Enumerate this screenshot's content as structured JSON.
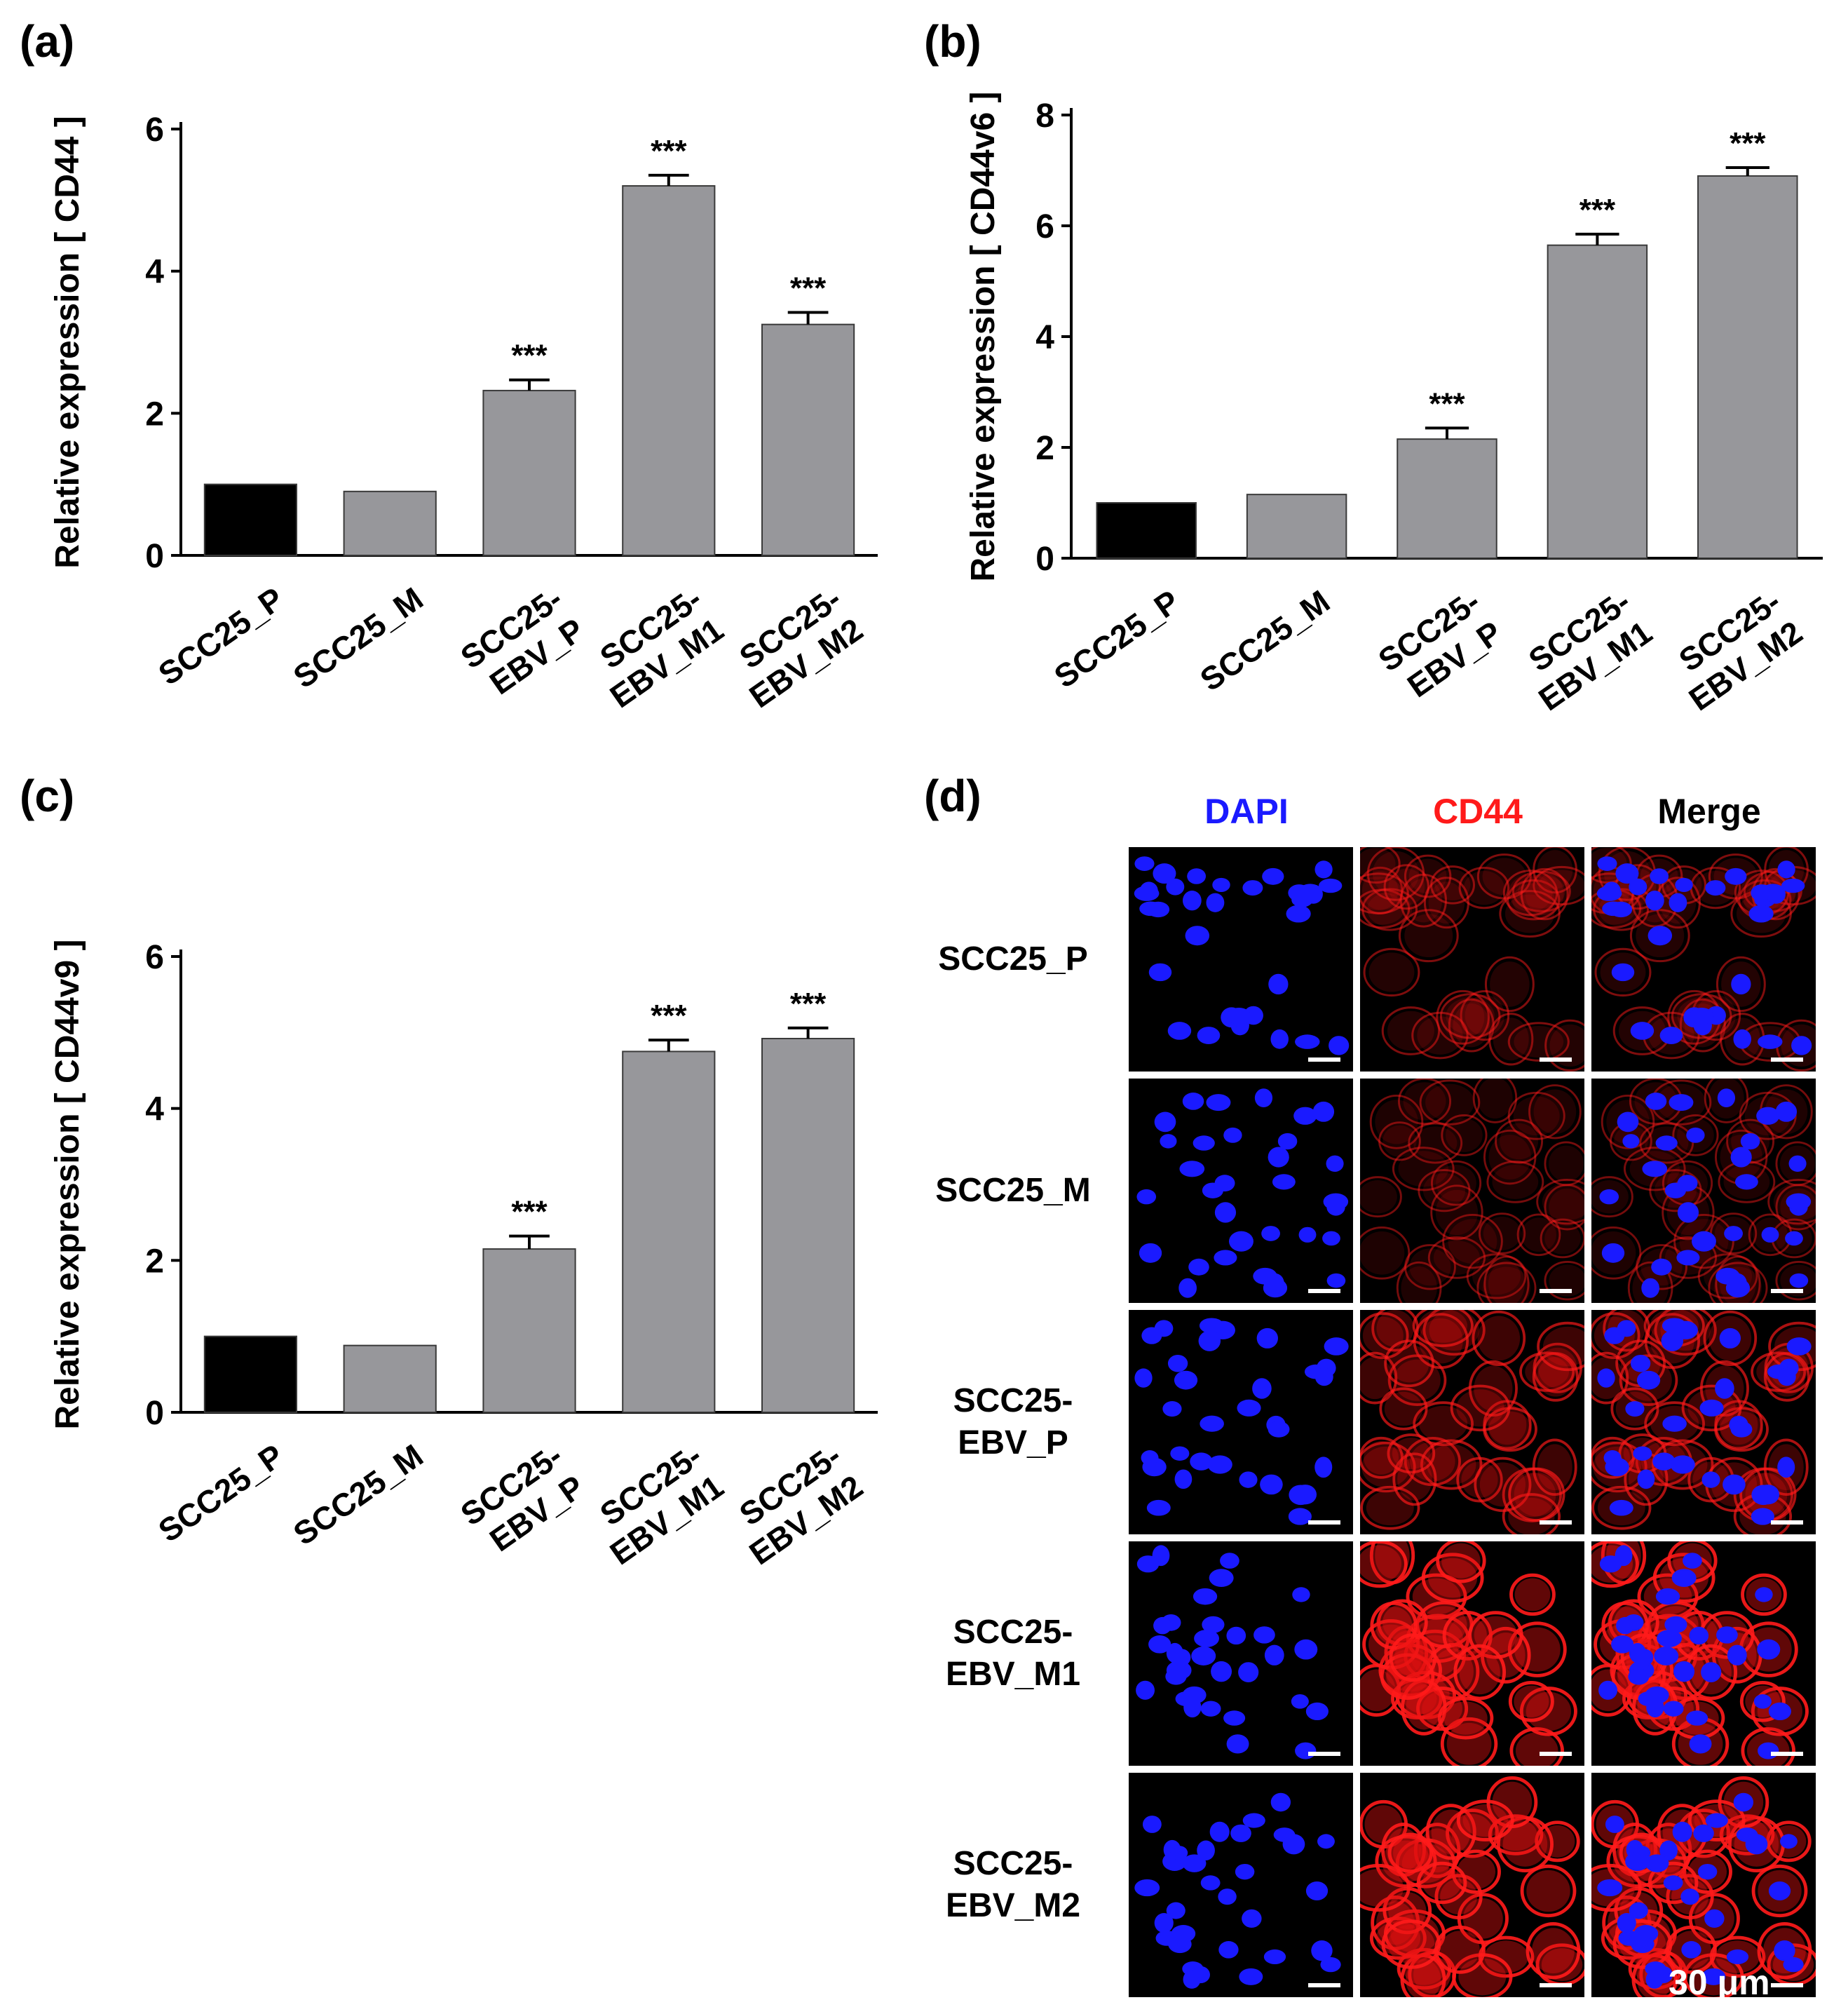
{
  "panels": {
    "a_label": "(a)",
    "b_label": "(b)",
    "c_label": "(c)",
    "d_label": "(d)"
  },
  "chart_data": [
    {
      "id": "a",
      "type": "bar",
      "categories": [
        [
          "SCC25_P"
        ],
        [
          "SCC25_M"
        ],
        [
          "SCC25-",
          "EBV_P"
        ],
        [
          "SCC25-",
          "EBV_M1"
        ],
        [
          "SCC25-",
          "EBV_M2"
        ]
      ],
      "values": [
        1.0,
        0.9,
        2.32,
        5.2,
        3.25
      ],
      "errors": [
        0,
        0,
        0.15,
        0.15,
        0.17
      ],
      "annotations": [
        "",
        "",
        "***",
        "***",
        "***"
      ],
      "bar_colors": [
        "#000000",
        "#97979b",
        "#97979b",
        "#97979b",
        "#97979b"
      ],
      "ylabel": "Relative expression [ CD44 ]",
      "ylim": [
        0,
        6
      ],
      "yticks": [
        0,
        2,
        4,
        6
      ],
      "grid": false
    },
    {
      "id": "b",
      "type": "bar",
      "categories": [
        [
          "SCC25_P"
        ],
        [
          "SCC25_M"
        ],
        [
          "SCC25-",
          "EBV_P"
        ],
        [
          "SCC25-",
          "EBV_M1"
        ],
        [
          "SCC25-",
          "EBV_M2"
        ]
      ],
      "values": [
        1.0,
        1.15,
        2.15,
        5.65,
        6.9
      ],
      "errors": [
        0,
        0,
        0.2,
        0.2,
        0.15
      ],
      "annotations": [
        "",
        "",
        "***",
        "***",
        "***"
      ],
      "bar_colors": [
        "#000000",
        "#97979b",
        "#97979b",
        "#97979b",
        "#97979b"
      ],
      "ylabel": "Relative expression [ CD44v6 ]",
      "ylim": [
        0,
        8
      ],
      "yticks": [
        0,
        2,
        4,
        6,
        8
      ],
      "grid": false
    },
    {
      "id": "c",
      "type": "bar",
      "categories": [
        [
          "SCC25_P"
        ],
        [
          "SCC25_M"
        ],
        [
          "SCC25-",
          "EBV_P"
        ],
        [
          "SCC25-",
          "EBV_M1"
        ],
        [
          "SCC25-",
          "EBV_M2"
        ]
      ],
      "values": [
        1.0,
        0.88,
        2.15,
        4.75,
        4.92
      ],
      "errors": [
        0,
        0,
        0.17,
        0.15,
        0.14
      ],
      "annotations": [
        "",
        "",
        "***",
        "***",
        "***"
      ],
      "bar_colors": [
        "#000000",
        "#97979b",
        "#97979b",
        "#97979b",
        "#97979b"
      ],
      "ylabel": "Relative expression [ CD44v9 ]",
      "ylim": [
        0,
        6
      ],
      "yticks": [
        0,
        2,
        4,
        6
      ],
      "grid": false
    }
  ],
  "microscopy": {
    "columns": [
      {
        "label": "DAPI",
        "color": "#1a1aff"
      },
      {
        "label": "CD44",
        "color": "#ff1a1a"
      },
      {
        "label": "Merge",
        "color": "#000000"
      }
    ],
    "rows": [
      {
        "line1": "SCC25_P",
        "line2": "",
        "cd44_intensity": 0.35
      },
      {
        "line1": "SCC25_M",
        "line2": "",
        "cd44_intensity": 0.3
      },
      {
        "line1": "SCC25-",
        "line2": "EBV_P",
        "cd44_intensity": 0.6
      },
      {
        "line1": "SCC25-",
        "line2": "EBV_M1",
        "cd44_intensity": 0.95
      },
      {
        "line1": "SCC25-",
        "line2": "EBV_M2",
        "cd44_intensity": 0.95
      }
    ],
    "scale_label": "30 μm"
  }
}
